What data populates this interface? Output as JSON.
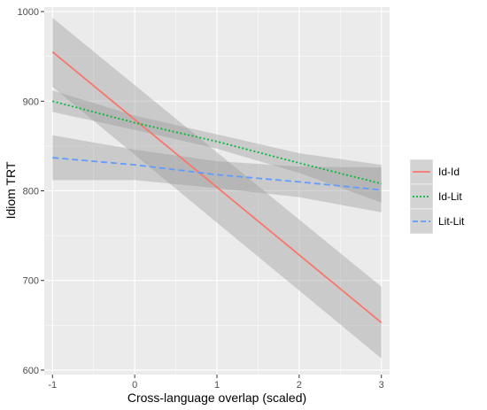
{
  "chart_data": {
    "type": "line",
    "xlabel": "Cross-language overlap (scaled)",
    "ylabel": "Idiom TRT",
    "xlim": [
      -1.1,
      3.1
    ],
    "ylim": [
      595,
      1005
    ],
    "x_ticks": [
      "-1",
      "0",
      "1",
      "2",
      "3"
    ],
    "y_ticks": [
      "600",
      "700",
      "800",
      "900",
      "1000"
    ],
    "grid": true,
    "legend_position": "right",
    "series": [
      {
        "name": "Id-Id",
        "color": "#F8766D",
        "dash": "solid",
        "x": [
          -1,
          3
        ],
        "y": [
          955,
          653
        ],
        "ci_lower": [
          916,
          613
        ],
        "ci_upper": [
          993,
          693
        ]
      },
      {
        "name": "Id-Lit",
        "color": "#00BA38",
        "dash": "dotted",
        "x": [
          -1,
          0,
          1,
          2,
          3
        ],
        "y": [
          900,
          876,
          855,
          831,
          808
        ],
        "ci_lower": [
          888,
          868,
          847,
          820,
          787
        ],
        "ci_upper": [
          912,
          884,
          863,
          842,
          829
        ]
      },
      {
        "name": "Lit-Lit",
        "color": "#619CFF",
        "dash": "dashed",
        "x": [
          -1,
          0,
          1,
          2,
          3
        ],
        "y": [
          837,
          829,
          818,
          810,
          801
        ],
        "ci_lower": [
          812,
          812,
          803,
          793,
          776
        ],
        "ci_upper": [
          862,
          846,
          833,
          827,
          826
        ]
      }
    ]
  }
}
